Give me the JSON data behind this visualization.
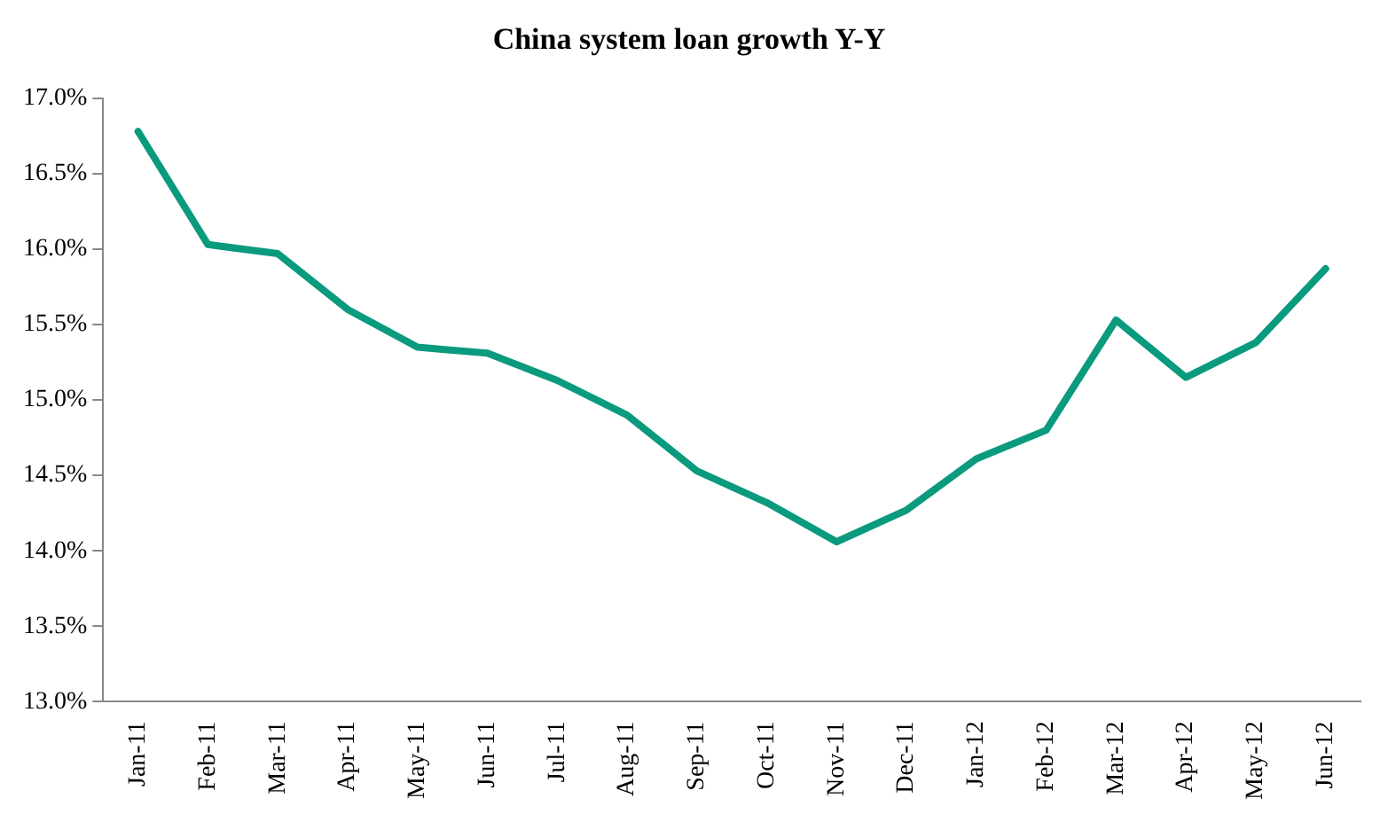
{
  "chart_data": {
    "type": "line",
    "title": "China system loan growth Y-Y",
    "categories": [
      "Jan-11",
      "Feb-11",
      "Mar-11",
      "Apr-11",
      "May-11",
      "Jun-11",
      "Jul-11",
      "Aug-11",
      "Sep-11",
      "Oct-11",
      "Nov-11",
      "Dec-11",
      "Jan-12",
      "Feb-12",
      "Mar-12",
      "Apr-12",
      "May-12",
      "Jun-12"
    ],
    "series": [
      {
        "color": "#0a9a7e",
        "values": [
          16.78,
          16.03,
          15.97,
          15.6,
          15.35,
          15.31,
          15.13,
          14.9,
          14.53,
          14.32,
          14.06,
          14.27,
          14.61,
          14.8,
          15.53,
          15.15,
          15.38,
          15.87
        ]
      }
    ],
    "ylim": [
      13,
      17
    ],
    "yticks": [
      {
        "value": 13,
        "label": "13.0%"
      },
      {
        "value": 13.5,
        "label": "13.5%"
      },
      {
        "value": 14,
        "label": "14.0%"
      },
      {
        "value": 14.5,
        "label": "14.5%"
      },
      {
        "value": 15,
        "label": "15.0%"
      },
      {
        "value": 15.5,
        "label": "15.5%"
      },
      {
        "value": 16,
        "label": "16.0%"
      },
      {
        "value": 16.5,
        "label": "16.5%"
      },
      {
        "value": 17,
        "label": "17.0%"
      }
    ],
    "grid": false,
    "legend": false,
    "marker": "none",
    "line_style": "solid"
  }
}
